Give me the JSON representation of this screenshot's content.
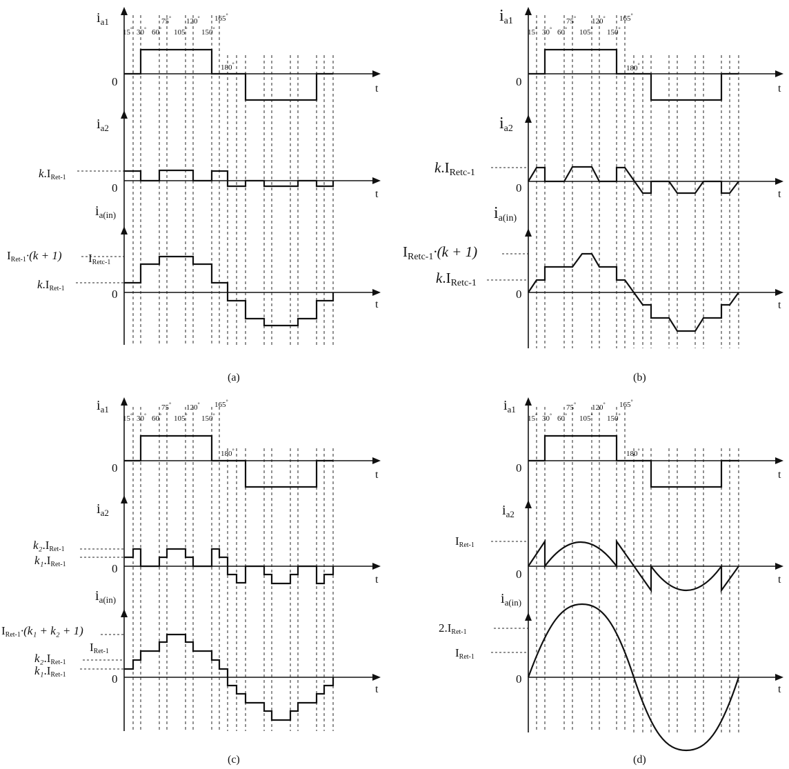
{
  "panels": [
    {
      "caption": "(a)",
      "ia1": {
        "label": "i",
        "sub": "a1",
        "zero": "0",
        "t": "t"
      },
      "ia2": {
        "label": "i",
        "sub": "a2",
        "zero": "0",
        "t": "t"
      },
      "iain": {
        "label": "i",
        "sub": "a(in)",
        "zero": "0",
        "t": "t"
      },
      "angles": {
        "a15": "15",
        "a30": "30",
        "a60": "60",
        "a75": "75",
        "a105": "105",
        "a120": "120",
        "a150": "150",
        "a165": "165",
        "a180": "180"
      },
      "ia2_ref": [
        {
          "pre": "k",
          "text": ".I",
          "sub": "Ret-1"
        }
      ],
      "iain_ref": [
        {
          "pre": "I",
          "sub": "Ret-1",
          "post": "·(k + 1)"
        },
        {
          "pre": "I",
          "sub": "Retc-1",
          "post": ""
        },
        {
          "pre": "k",
          "text": ".I",
          "sub": "Ret-1"
        }
      ]
    },
    {
      "caption": "(b)",
      "ia1": {
        "label": "i",
        "sub": "a1",
        "zero": "0",
        "t": "t"
      },
      "ia2": {
        "label": "i",
        "sub": "a2",
        "zero": "0",
        "t": "t"
      },
      "iain": {
        "label": "i",
        "sub": "a(in)",
        "zero": "0",
        "t": "t"
      },
      "angles": {
        "a15": "15",
        "a30": "30",
        "a60": "60",
        "a75": "75",
        "a105": "105",
        "a120": "120",
        "a150": "150",
        "a165": "165",
        "a180": "180"
      },
      "ia2_ref": [
        {
          "pre": "k",
          "text": ".I",
          "sub": "Retc-1"
        }
      ],
      "iain_ref": [
        {
          "pre": "I",
          "sub": "Retc-1",
          "post": "·(k + 1)"
        },
        {
          "pre": "k",
          "text": ".I",
          "sub": "Retc-1"
        }
      ]
    },
    {
      "caption": "(c)",
      "ia1": {
        "label": "i",
        "sub": "a1",
        "zero": "0",
        "t": "t"
      },
      "ia2": {
        "label": "i",
        "sub": "a2",
        "zero": "0",
        "t": "t"
      },
      "iain": {
        "label": "i",
        "sub": "a(in)",
        "zero": "0",
        "t": "t"
      },
      "angles": {
        "a15": "15",
        "a30": "30",
        "a60": "60",
        "a75": "75",
        "a105": "105",
        "a120": "120",
        "a150": "150",
        "a165": "165",
        "a180": "180"
      },
      "ia2_ref": [
        {
          "pre": "k₂",
          "text": ".I",
          "sub": "Ret-1"
        },
        {
          "pre": "k₁",
          "text": ".I",
          "sub": "Ret-1"
        }
      ],
      "iain_ref": [
        {
          "pre": "I",
          "sub": "Ret-1",
          "post": "·(k₁ + k₂ + 1)"
        },
        {
          "pre": "I",
          "sub": "Ret-1",
          "post": ""
        },
        {
          "pre": "k₂",
          "text": ".I",
          "sub": "Ret-1"
        },
        {
          "pre": "k₁",
          "text": ".I",
          "sub": "Ret-1"
        }
      ]
    },
    {
      "caption": "(d)",
      "ia1": {
        "label": "i",
        "sub": "a1",
        "zero": "0",
        "t": "t"
      },
      "ia2": {
        "label": "i",
        "sub": "a2",
        "zero": "0",
        "t": "t"
      },
      "iain": {
        "label": "i",
        "sub": "a(in)",
        "zero": "0",
        "t": "t"
      },
      "angles": {
        "a15": "15",
        "a30": "30",
        "a60": "60",
        "a75": "75",
        "a105": "105",
        "a120": "120",
        "a150": "150",
        "a165": "165",
        "a180": "180"
      },
      "ia2_ref": [
        {
          "pre": "I",
          "text": "",
          "sub": "Ret-1"
        }
      ],
      "iain_ref": [
        {
          "pre": "2.I",
          "sub": "Ret-1",
          "post": ""
        },
        {
          "pre": "I",
          "sub": "Ret-1",
          "post": ""
        }
      ]
    }
  ]
}
